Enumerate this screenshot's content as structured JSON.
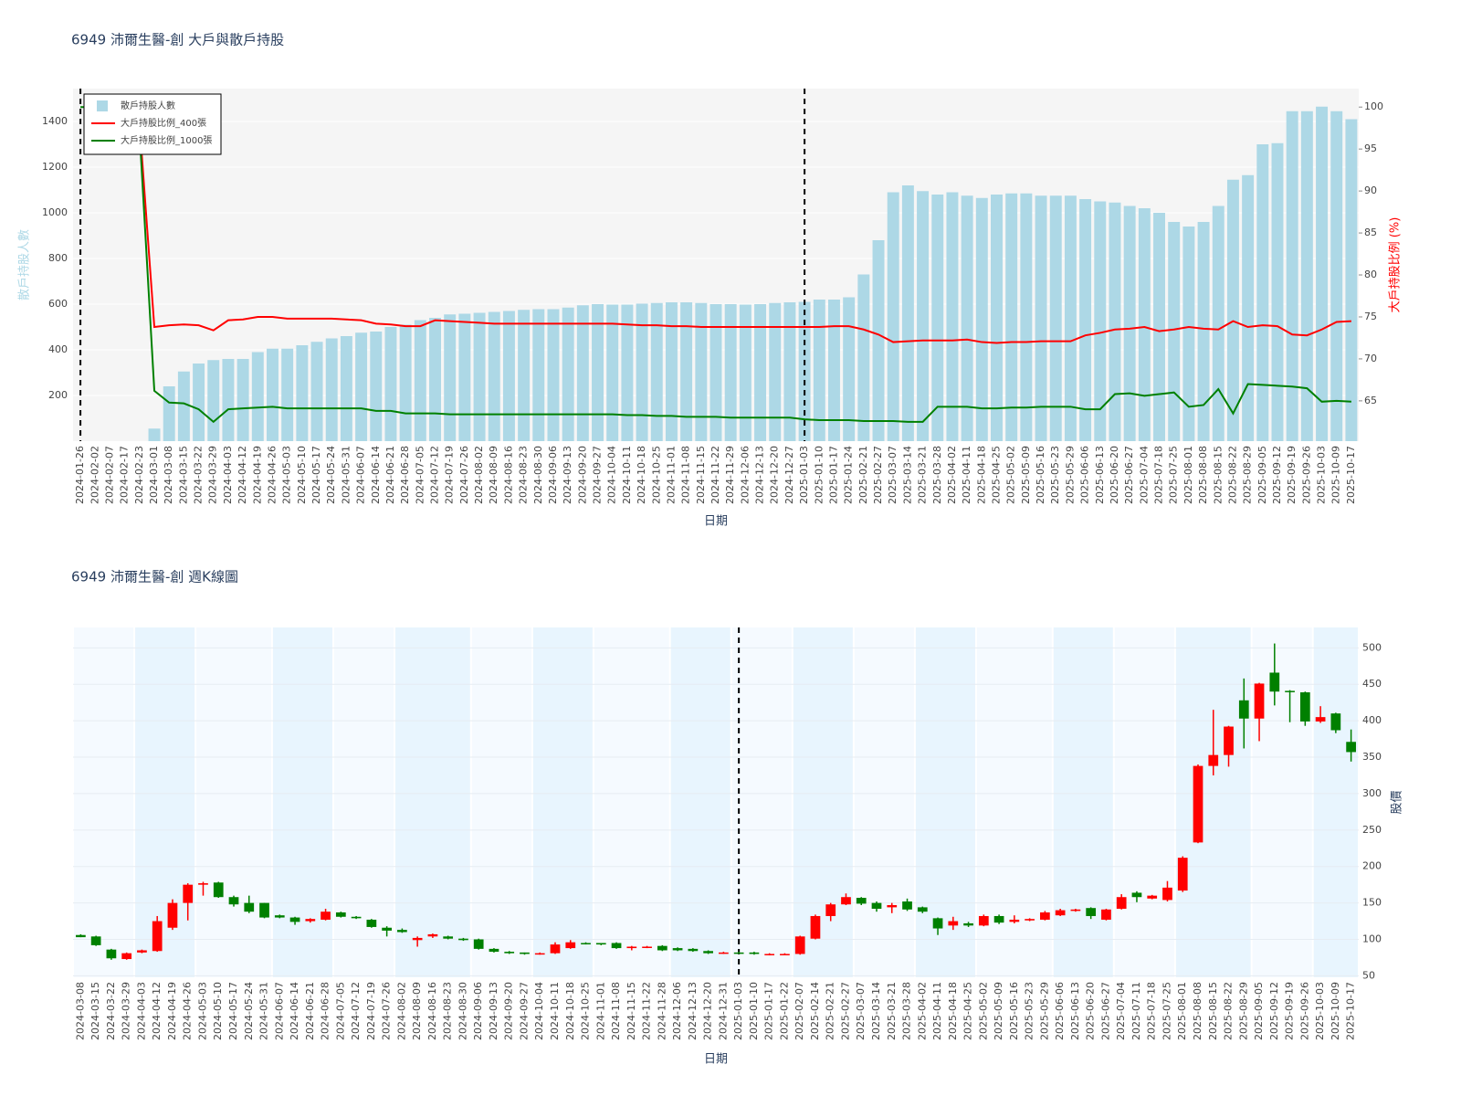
{
  "chart_data": [
    {
      "type": "combo",
      "title": "6949 沛爾生醫-創 大戶與散戶持股",
      "xlabel": "日期",
      "ylabel": "散戶持股人數",
      "y2label": "大戶持股比例 (%)",
      "categories": [
        "2024-01-26",
        "2024-02-02",
        "2024-02-07",
        "2024-02-17",
        "2024-02-23",
        "2024-03-01",
        "2024-03-08",
        "2024-03-15",
        "2024-03-22",
        "2024-03-29",
        "2024-04-03",
        "2024-04-12",
        "2024-04-19",
        "2024-04-26",
        "2024-05-03",
        "2024-05-10",
        "2024-05-17",
        "2024-05-24",
        "2024-05-31",
        "2024-06-07",
        "2024-06-14",
        "2024-06-21",
        "2024-06-28",
        "2024-07-05",
        "2024-07-12",
        "2024-07-19",
        "2024-07-26",
        "2024-08-02",
        "2024-08-09",
        "2024-08-16",
        "2024-08-23",
        "2024-08-30",
        "2024-09-06",
        "2024-09-13",
        "2024-09-20",
        "2024-09-27",
        "2024-10-04",
        "2024-10-11",
        "2024-10-18",
        "2024-10-25",
        "2024-11-01",
        "2024-11-08",
        "2024-11-15",
        "2024-11-22",
        "2024-11-29",
        "2024-12-06",
        "2024-12-13",
        "2024-12-20",
        "2024-12-27",
        "2025-01-03",
        "2025-01-10",
        "2025-01-17",
        "2025-01-24",
        "2025-02-21",
        "2025-02-27",
        "2025-03-07",
        "2025-03-14",
        "2025-03-21",
        "2025-03-28",
        "2025-04-02",
        "2025-04-11",
        "2025-04-18",
        "2025-04-25",
        "2025-05-02",
        "2025-05-09",
        "2025-05-16",
        "2025-05-23",
        "2025-05-29",
        "2025-06-06",
        "2025-06-13",
        "2025-06-20",
        "2025-06-27",
        "2025-07-04",
        "2025-07-18",
        "2025-07-25",
        "2025-08-01",
        "2025-08-08",
        "2025-08-15",
        "2025-08-22",
        "2025-08-29",
        "2025-09-05",
        "2025-09-12",
        "2025-09-19",
        "2025-09-26",
        "2025-10-03",
        "2025-10-09",
        "2025-10-17"
      ],
      "series": [
        {
          "name": "散戶持股人數",
          "type": "bar",
          "color": "#add8e6",
          "values": [
            null,
            null,
            null,
            null,
            null,
            55,
            240,
            305,
            340,
            355,
            360,
            360,
            390,
            405,
            405,
            420,
            435,
            450,
            460,
            475,
            480,
            500,
            510,
            530,
            540,
            555,
            558,
            562,
            566,
            570,
            575,
            578,
            578,
            585,
            595,
            600,
            598,
            598,
            602,
            605,
            608,
            608,
            605,
            600,
            600,
            598,
            600,
            605,
            608,
            610,
            620,
            620,
            630,
            730,
            880,
            1090,
            1120,
            1095,
            1080,
            1090,
            1075,
            1065,
            1080,
            1085,
            1085,
            1075,
            1075,
            1075,
            1060,
            1050,
            1045,
            1030,
            1020,
            1000,
            960,
            940,
            960,
            1030,
            1145,
            1165,
            1300,
            1305,
            1445,
            1445,
            1465,
            1445,
            1410
          ]
        },
        {
          "name": "大戶持股比例_400張",
          "type": "line",
          "color": "red",
          "axis": "y2",
          "values": [
            null,
            null,
            null,
            null,
            98,
            73.8,
            74.0,
            74.1,
            74.0,
            73.4,
            74.6,
            74.7,
            75.0,
            75.0,
            74.8,
            74.8,
            74.8,
            74.8,
            74.7,
            74.6,
            74.2,
            74.1,
            73.9,
            73.9,
            74.6,
            74.5,
            74.4,
            74.3,
            74.2,
            74.2,
            74.2,
            74.2,
            74.2,
            74.2,
            74.2,
            74.2,
            74.2,
            74.1,
            74.0,
            74.0,
            73.9,
            73.9,
            73.8,
            73.8,
            73.8,
            73.8,
            73.8,
            73.8,
            73.8,
            73.8,
            73.8,
            73.9,
            73.9,
            73.5,
            72.9,
            72.0,
            72.1,
            72.2,
            72.2,
            72.2,
            72.3,
            72.0,
            71.9,
            72.0,
            72.0,
            72.1,
            72.1,
            72.1,
            72.8,
            73.1,
            73.5,
            73.6,
            73.8,
            73.3,
            73.5,
            73.8,
            73.6,
            73.5,
            74.5,
            73.8,
            74.0,
            73.9,
            72.9,
            72.8,
            73.5,
            74.4,
            74.5
          ]
        },
        {
          "name": "大戶持股比例_1000張",
          "type": "line",
          "color": "green",
          "axis": "y2",
          "values": [
            100,
            100,
            100,
            100,
            97,
            66.2,
            64.8,
            64.7,
            64.0,
            62.5,
            64.0,
            64.1,
            64.2,
            64.3,
            64.1,
            64.1,
            64.1,
            64.1,
            64.1,
            64.1,
            63.8,
            63.8,
            63.5,
            63.5,
            63.5,
            63.4,
            63.4,
            63.4,
            63.4,
            63.4,
            63.4,
            63.4,
            63.4,
            63.4,
            63.4,
            63.4,
            63.4,
            63.3,
            63.3,
            63.2,
            63.2,
            63.1,
            63.1,
            63.1,
            63.0,
            63.0,
            63.0,
            63.0,
            63.0,
            62.8,
            62.7,
            62.7,
            62.7,
            62.6,
            62.6,
            62.6,
            62.5,
            62.5,
            64.3,
            64.3,
            64.3,
            64.1,
            64.1,
            64.2,
            64.2,
            64.3,
            64.3,
            64.3,
            64.0,
            64.0,
            65.8,
            65.9,
            65.6,
            65.8,
            66.0,
            64.3,
            64.5,
            66.4,
            63.5,
            67.0,
            66.9,
            66.8,
            66.7,
            66.5,
            64.9,
            65.0,
            64.9
          ]
        }
      ],
      "ylim": [
        0,
        1544
      ],
      "yticks": [
        200,
        400,
        600,
        800,
        1000,
        1200,
        1400
      ],
      "y2lim": [
        60.2,
        102.2
      ],
      "y2ticks": [
        65,
        70,
        75,
        80,
        85,
        90,
        95,
        100
      ],
      "legend": "top-left",
      "grid": true
    },
    {
      "type": "candlestick",
      "title": "6949 沛爾生醫-創 週K線圖",
      "xlabel": "日期",
      "ylabel": "股價",
      "categories": [
        "2024-03-08",
        "2024-03-15",
        "2024-03-22",
        "2024-03-29",
        "2024-04-03",
        "2024-04-12",
        "2024-04-19",
        "2024-04-26",
        "2024-05-03",
        "2024-05-10",
        "2024-05-17",
        "2024-05-24",
        "2024-05-31",
        "2024-06-07",
        "2024-06-14",
        "2024-06-21",
        "2024-06-28",
        "2024-07-05",
        "2024-07-12",
        "2024-07-19",
        "2024-07-26",
        "2024-08-02",
        "2024-08-09",
        "2024-08-16",
        "2024-08-23",
        "2024-08-30",
        "2024-09-06",
        "2024-09-13",
        "2024-09-20",
        "2024-09-27",
        "2024-10-04",
        "2024-10-11",
        "2024-10-18",
        "2024-10-25",
        "2024-11-01",
        "2024-11-08",
        "2024-11-15",
        "2024-11-22",
        "2024-11-28",
        "2024-12-06",
        "2024-12-13",
        "2024-12-20",
        "2024-12-31",
        "2025-01-03",
        "2025-01-10",
        "2025-01-17",
        "2025-01-22",
        "2025-02-07",
        "2025-02-14",
        "2025-02-21",
        "2025-02-27",
        "2025-03-07",
        "2025-03-14",
        "2025-03-21",
        "2025-03-28",
        "2025-04-02",
        "2025-04-11",
        "2025-04-18",
        "2025-04-25",
        "2025-05-02",
        "2025-05-09",
        "2025-05-16",
        "2025-05-23",
        "2025-05-29",
        "2025-06-06",
        "2025-06-13",
        "2025-06-20",
        "2025-06-27",
        "2025-07-04",
        "2025-07-11",
        "2025-07-18",
        "2025-07-25",
        "2025-08-01",
        "2025-08-08",
        "2025-08-15",
        "2025-08-22",
        "2025-08-29",
        "2025-09-05",
        "2025-09-12",
        "2025-09-19",
        "2025-09-26",
        "2025-10-03",
        "2025-10-09",
        "2025-10-17"
      ],
      "open": [
        106,
        104,
        86,
        73,
        82,
        84,
        116,
        150,
        175,
        178,
        158,
        150,
        150,
        133,
        130,
        125,
        127,
        137,
        131,
        127,
        116,
        113,
        99,
        104,
        104,
        101,
        100,
        87,
        83,
        82,
        80,
        81,
        88,
        95,
        95,
        95,
        88,
        89,
        91,
        88,
        87,
        84,
        81,
        82,
        82,
        79,
        79,
        80,
        101,
        132,
        148,
        157,
        150,
        144,
        152,
        144,
        129,
        119,
        122,
        119,
        132,
        124,
        126,
        127,
        133,
        139,
        143,
        127,
        142,
        164,
        156,
        154,
        167,
        233,
        338,
        353,
        428,
        403,
        466,
        441,
        439,
        399,
        410,
        371
      ],
      "high": [
        107,
        105,
        87,
        82,
        86,
        132,
        155,
        177,
        179,
        179,
        160,
        160,
        150,
        134,
        131,
        129,
        142,
        138,
        132,
        128,
        118,
        115,
        104,
        108,
        105,
        102,
        101,
        88,
        84,
        82,
        82,
        96,
        99,
        96,
        95,
        96,
        91,
        91,
        92,
        89,
        88,
        85,
        83,
        83,
        83,
        81,
        81,
        105,
        134,
        150,
        163,
        158,
        152,
        150,
        156,
        145,
        130,
        131,
        124,
        134,
        134,
        133,
        129,
        139,
        142,
        142,
        144,
        142,
        162,
        166,
        161,
        180,
        214,
        340,
        415,
        393,
        458,
        452,
        506,
        442,
        440,
        420,
        411,
        388
      ],
      "low": [
        103,
        91,
        72,
        72,
        81,
        83,
        113,
        126,
        160,
        157,
        145,
        136,
        129,
        129,
        120,
        123,
        126,
        130,
        128,
        116,
        104,
        109,
        90,
        102,
        100,
        98,
        86,
        82,
        80,
        79,
        79,
        80,
        87,
        93,
        92,
        87,
        85,
        88,
        84,
        84,
        83,
        80,
        80,
        80,
        79,
        78,
        79,
        79,
        100,
        125,
        147,
        147,
        138,
        136,
        139,
        136,
        106,
        113,
        117,
        118,
        121,
        122,
        125,
        126,
        132,
        138,
        128,
        126,
        141,
        151,
        155,
        152,
        165,
        232,
        325,
        337,
        362,
        372,
        421,
        398,
        393,
        397,
        383,
        344
      ],
      "close": [
        103,
        92,
        74,
        81,
        85,
        125,
        150,
        175,
        177,
        158,
        148,
        138,
        130,
        130,
        124,
        128,
        138,
        131,
        129,
        117,
        112,
        110,
        102,
        107,
        101,
        99,
        87,
        83,
        81,
        80,
        81,
        93,
        96,
        94,
        93,
        88,
        90,
        90,
        85,
        85,
        84,
        81,
        82,
        81,
        80,
        80,
        80,
        104,
        132,
        148,
        158,
        149,
        142,
        147,
        141,
        138,
        115,
        125,
        119,
        132,
        123,
        127,
        128,
        137,
        140,
        141,
        132,
        141,
        158,
        158,
        160,
        171,
        212,
        338,
        353,
        392,
        403,
        451,
        440,
        440,
        399,
        405,
        387,
        357
      ],
      "increasing_color": "red",
      "decreasing_color": "green",
      "month_shading": [
        "#f5faff",
        "#e8f5fe"
      ],
      "ylim": [
        48,
        528
      ],
      "yticks": [
        50,
        100,
        150,
        200,
        250,
        300,
        350,
        400,
        450,
        500
      ],
      "yaxis_side": "right",
      "grid": true
    }
  ]
}
